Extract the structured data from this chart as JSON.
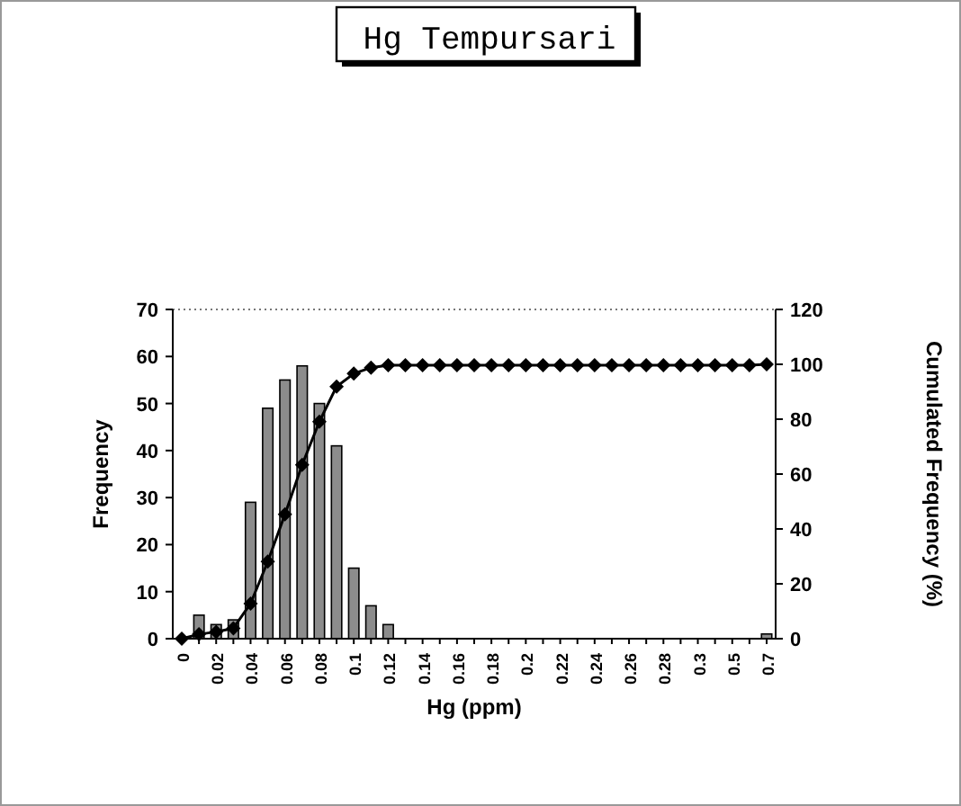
{
  "chart_data": {
    "type": "bar",
    "title": "Hg Tempursari",
    "xlabel": "Hg (ppm)",
    "ylabel": "Frequency",
    "y2label": "Cumulated Frequency (%)",
    "categories": [
      "0",
      null,
      "0.02",
      null,
      "0.04",
      null,
      "0.06",
      null,
      "0.08",
      null,
      "0.1",
      null,
      "0.12",
      null,
      "0.14",
      null,
      "0.16",
      null,
      "0.18",
      null,
      "0.2",
      null,
      "0.22",
      null,
      "0.24",
      null,
      "0.26",
      null,
      "0.28",
      null,
      "0.3",
      null,
      "0.5",
      null,
      "0.7"
    ],
    "series": [
      {
        "color": "#8c8c8c",
        "values": [
          0,
          5,
          3,
          4,
          29,
          49,
          55,
          58,
          50,
          41,
          15,
          7,
          3,
          0,
          0,
          0,
          0,
          0,
          0,
          0,
          0,
          0,
          0,
          0,
          0,
          0,
          0,
          0,
          0,
          0,
          0,
          0,
          0,
          0,
          1
        ]
      },
      {
        "type": "line",
        "axis": "y2",
        "color": "#000000",
        "values": [
          0,
          1.6,
          2.5,
          3.8,
          12.8,
          28.1,
          45.3,
          63.4,
          79.1,
          91.9,
          96.6,
          98.8,
          99.7,
          99.7,
          99.7,
          99.7,
          99.7,
          99.7,
          99.7,
          99.7,
          99.7,
          99.7,
          99.7,
          99.7,
          99.7,
          99.7,
          99.7,
          99.7,
          99.7,
          99.7,
          99.7,
          99.7,
          99.7,
          99.7,
          100
        ]
      }
    ],
    "ylim": [
      0,
      70
    ],
    "yticks": [
      0,
      10,
      20,
      30,
      40,
      50,
      60,
      70
    ],
    "y2lim": [
      0,
      120
    ],
    "y2ticks": [
      0,
      20,
      40,
      60,
      80,
      100,
      120
    ],
    "marker": "diamond",
    "grid": false
  }
}
